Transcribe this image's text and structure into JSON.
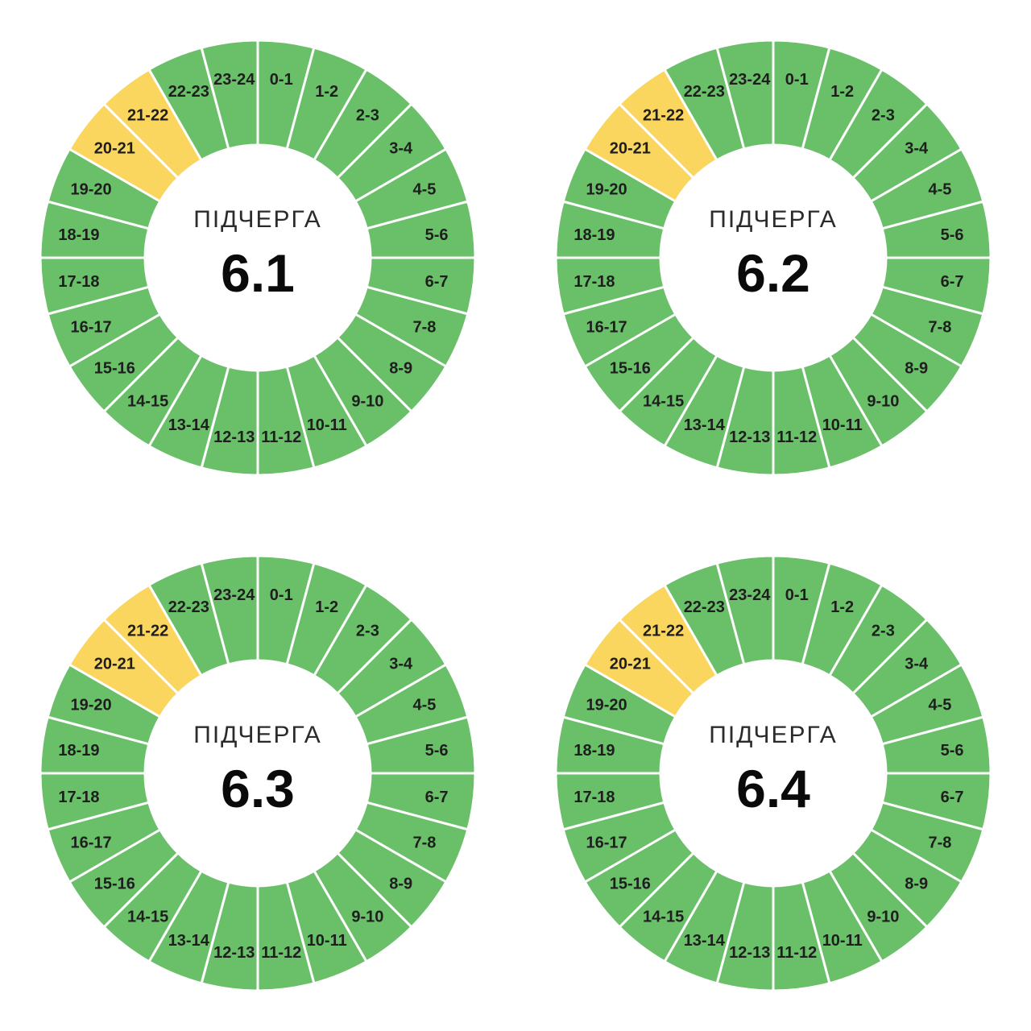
{
  "page": {
    "background": "#ffffff",
    "description_colors": {
      "segment_green": "#6abf69",
      "segment_yellow": "#fad65e",
      "separator": "#ffffff",
      "segment_label_text": "#1e1e1e",
      "center_label_text": "#2b2b2b",
      "center_value_text": "#0a0a0a"
    }
  },
  "hours": [
    "0-1",
    "1-2",
    "2-3",
    "3-4",
    "4-5",
    "5-6",
    "6-7",
    "7-8",
    "8-9",
    "9-10",
    "10-11",
    "11-12",
    "12-13",
    "13-14",
    "14-15",
    "15-16",
    "16-17",
    "17-18",
    "18-19",
    "19-20",
    "20-21",
    "21-22",
    "22-23",
    "23-24"
  ],
  "charts": [
    {
      "id": "6-1",
      "center_label": "ПІДЧЕРГА",
      "value": "6.1",
      "yellow_hours": [
        "20-21",
        "21-22"
      ]
    },
    {
      "id": "6-2",
      "center_label": "ПІДЧЕРГА",
      "value": "6.2",
      "yellow_hours": [
        "20-21",
        "21-22"
      ]
    },
    {
      "id": "6-3",
      "center_label": "ПІДЧЕРГА",
      "value": "6.3",
      "yellow_hours": [
        "20-21",
        "21-22"
      ]
    },
    {
      "id": "6-4",
      "center_label": "ПІДЧЕРГА",
      "value": "6.4",
      "yellow_hours": [
        "20-21",
        "21-22"
      ]
    }
  ],
  "chart_data": [
    {
      "type": "pie",
      "subtype": "donut",
      "title": "ПІДЧЕРГА 6.1",
      "center_text": [
        "ПІДЧЕРГА",
        "6.1"
      ],
      "categories": [
        "0-1",
        "1-2",
        "2-3",
        "3-4",
        "4-5",
        "5-6",
        "6-7",
        "7-8",
        "8-9",
        "9-10",
        "10-11",
        "11-12",
        "12-13",
        "13-14",
        "14-15",
        "15-16",
        "16-17",
        "17-18",
        "18-19",
        "19-20",
        "20-21",
        "21-22",
        "22-23",
        "23-24"
      ],
      "values": [
        1,
        1,
        1,
        1,
        1,
        1,
        1,
        1,
        1,
        1,
        1,
        1,
        1,
        1,
        1,
        1,
        1,
        1,
        1,
        1,
        1,
        1,
        1,
        1
      ],
      "slice_status": [
        "green",
        "green",
        "green",
        "green",
        "green",
        "green",
        "green",
        "green",
        "green",
        "green",
        "green",
        "green",
        "green",
        "green",
        "green",
        "green",
        "green",
        "green",
        "green",
        "green",
        "yellow",
        "yellow",
        "green",
        "green"
      ],
      "start_angle_deg": 0,
      "direction": "clockwise",
      "legend": false
    },
    {
      "type": "pie",
      "subtype": "donut",
      "title": "ПІДЧЕРГА 6.2",
      "center_text": [
        "ПІДЧЕРГА",
        "6.2"
      ],
      "categories": [
        "0-1",
        "1-2",
        "2-3",
        "3-4",
        "4-5",
        "5-6",
        "6-7",
        "7-8",
        "8-9",
        "9-10",
        "10-11",
        "11-12",
        "12-13",
        "13-14",
        "14-15",
        "15-16",
        "16-17",
        "17-18",
        "18-19",
        "19-20",
        "20-21",
        "21-22",
        "22-23",
        "23-24"
      ],
      "values": [
        1,
        1,
        1,
        1,
        1,
        1,
        1,
        1,
        1,
        1,
        1,
        1,
        1,
        1,
        1,
        1,
        1,
        1,
        1,
        1,
        1,
        1,
        1,
        1
      ],
      "slice_status": [
        "green",
        "green",
        "green",
        "green",
        "green",
        "green",
        "green",
        "green",
        "green",
        "green",
        "green",
        "green",
        "green",
        "green",
        "green",
        "green",
        "green",
        "green",
        "green",
        "green",
        "yellow",
        "yellow",
        "green",
        "green"
      ],
      "start_angle_deg": 0,
      "direction": "clockwise",
      "legend": false
    },
    {
      "type": "pie",
      "subtype": "donut",
      "title": "ПІДЧЕРГА 6.3",
      "center_text": [
        "ПІДЧЕРГА",
        "6.3"
      ],
      "categories": [
        "0-1",
        "1-2",
        "2-3",
        "3-4",
        "4-5",
        "5-6",
        "6-7",
        "7-8",
        "8-9",
        "9-10",
        "10-11",
        "11-12",
        "12-13",
        "13-14",
        "14-15",
        "15-16",
        "16-17",
        "17-18",
        "18-19",
        "19-20",
        "20-21",
        "21-22",
        "22-23",
        "23-24"
      ],
      "values": [
        1,
        1,
        1,
        1,
        1,
        1,
        1,
        1,
        1,
        1,
        1,
        1,
        1,
        1,
        1,
        1,
        1,
        1,
        1,
        1,
        1,
        1,
        1,
        1
      ],
      "slice_status": [
        "green",
        "green",
        "green",
        "green",
        "green",
        "green",
        "green",
        "green",
        "green",
        "green",
        "green",
        "green",
        "green",
        "green",
        "green",
        "green",
        "green",
        "green",
        "green",
        "green",
        "yellow",
        "yellow",
        "green",
        "green"
      ],
      "start_angle_deg": 0,
      "direction": "clockwise",
      "legend": false
    },
    {
      "type": "pie",
      "subtype": "donut",
      "title": "ПІДЧЕРГА 6.4",
      "center_text": [
        "ПІДЧЕРГА",
        "6.4"
      ],
      "categories": [
        "0-1",
        "1-2",
        "2-3",
        "3-4",
        "4-5",
        "5-6",
        "6-7",
        "7-8",
        "8-9",
        "9-10",
        "10-11",
        "11-12",
        "12-13",
        "13-14",
        "14-15",
        "15-16",
        "16-17",
        "17-18",
        "18-19",
        "19-20",
        "20-21",
        "21-22",
        "22-23",
        "23-24"
      ],
      "values": [
        1,
        1,
        1,
        1,
        1,
        1,
        1,
        1,
        1,
        1,
        1,
        1,
        1,
        1,
        1,
        1,
        1,
        1,
        1,
        1,
        1,
        1,
        1,
        1
      ],
      "slice_status": [
        "green",
        "green",
        "green",
        "green",
        "green",
        "green",
        "green",
        "green",
        "green",
        "green",
        "green",
        "green",
        "green",
        "green",
        "green",
        "green",
        "green",
        "green",
        "green",
        "green",
        "yellow",
        "yellow",
        "green",
        "green"
      ],
      "start_angle_deg": 0,
      "direction": "clockwise",
      "legend": false
    }
  ]
}
